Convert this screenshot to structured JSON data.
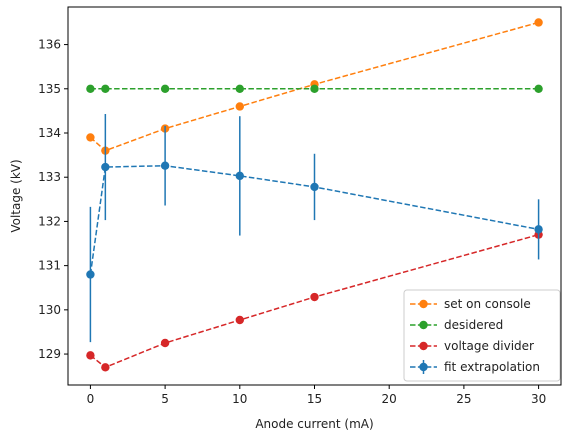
{
  "chart_data": {
    "type": "line",
    "title": "",
    "xlabel": "Anode current (mA)",
    "ylabel": "Voltage (kV)",
    "xlim": [
      -1.5,
      31.5
    ],
    "ylim": [
      128.3,
      136.85
    ],
    "x_ticks": [
      0,
      5,
      10,
      15,
      20,
      25,
      30
    ],
    "y_ticks": [
      129,
      130,
      131,
      132,
      133,
      134,
      135,
      136
    ],
    "grid": false,
    "legend_position": "bottom-right",
    "series": [
      {
        "name": "set on console",
        "color": "#ff7f0e",
        "style": "dashed-line-circle-markers",
        "x": [
          0,
          1,
          5,
          10,
          15,
          30
        ],
        "y": [
          133.9,
          133.6,
          134.1,
          134.6,
          135.1,
          136.5
        ]
      },
      {
        "name": "desidered",
        "color": "#2ca02c",
        "style": "dashed-line-circle-markers",
        "x": [
          0,
          1,
          5,
          10,
          15,
          30
        ],
        "y": [
          135.0,
          135.0,
          135.0,
          135.0,
          135.0,
          135.0
        ]
      },
      {
        "name": "voltage divider",
        "color": "#d62728",
        "style": "dashed-line-circle-markers",
        "x": [
          0,
          1,
          5,
          10,
          15,
          30
        ],
        "y": [
          128.97,
          128.7,
          129.25,
          129.77,
          130.29,
          131.7
        ]
      },
      {
        "name": "fit extrapolation",
        "color": "#1f77b4",
        "style": "dashed-line-circle-markers-errorbars",
        "x": [
          0,
          1,
          5,
          10,
          15,
          30
        ],
        "y": [
          130.8,
          133.23,
          133.26,
          133.03,
          132.78,
          131.82
        ],
        "yerr": [
          1.53,
          1.2,
          0.9,
          1.35,
          0.75,
          0.68
        ]
      }
    ]
  }
}
